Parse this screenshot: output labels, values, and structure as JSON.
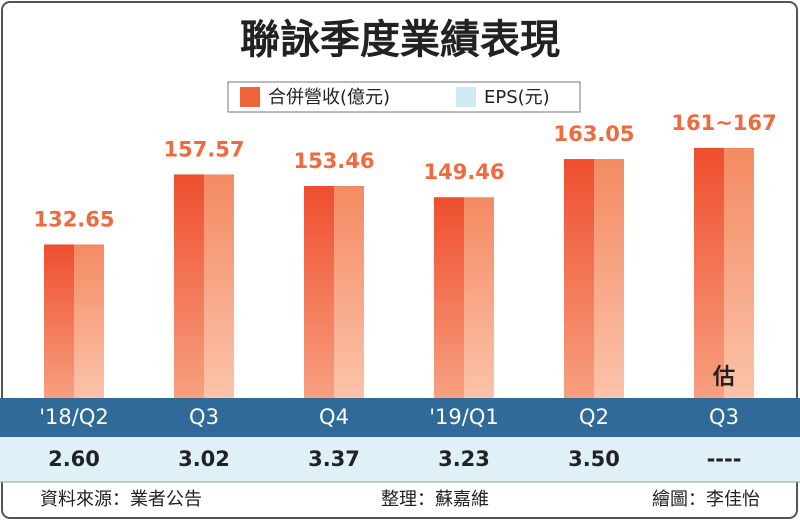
{
  "chart_data": {
    "type": "bar",
    "title": "聯詠季度業績表現",
    "categories": [
      "'18/Q2",
      "Q3",
      "Q4",
      "'19/Q1",
      "Q2",
      "Q3"
    ],
    "series": [
      {
        "name": "合併營收(億元)",
        "color": "#f0643c",
        "values": [
          132.65,
          157.57,
          153.46,
          149.46,
          163.05,
          167
        ],
        "value_labels": [
          "132.65",
          "157.57",
          "153.46",
          "149.46",
          "163.05",
          "161~167"
        ]
      },
      {
        "name": "EPS(元)",
        "color": "#cdeaf3",
        "values": [
          2.6,
          3.02,
          3.37,
          3.23,
          3.5,
          null
        ],
        "value_labels": [
          "2.60",
          "3.02",
          "3.37",
          "3.23",
          "3.50",
          "----"
        ]
      }
    ],
    "annotation": "估",
    "ylim": [
      78,
      170
    ],
    "notes": [
      "資料來源：業者公告",
      "整理：蘇嘉維",
      "繪圖：李佳怡"
    ]
  }
}
